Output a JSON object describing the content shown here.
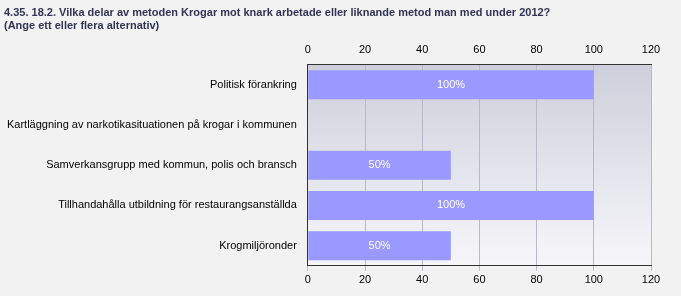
{
  "chart_data": {
    "type": "bar",
    "orientation": "horizontal",
    "title": [
      "4.35. 18.2. Vilka delar av metoden Krogar mot knark arbetade eller liknande metod man med under 2012?",
      "(Ange ett eller flera alternativ)"
    ],
    "categories": [
      "Politisk förankring",
      "Kartläggning av narkotikasituationen på krogar i kommunen",
      "Samverkansgrupp med kommun, polis och bransch",
      "Tillhandahålla utbildning för restaurangsanställda",
      "Krogmiljöronder"
    ],
    "values": [
      100,
      null,
      50,
      100,
      50
    ],
    "value_labels": [
      "100%",
      null,
      "50%",
      "100%",
      "50%"
    ],
    "data_labels": true,
    "color": "#9999ff",
    "xlim": [
      0,
      120
    ],
    "xticks": [
      0,
      20,
      40,
      60,
      80,
      100,
      120
    ],
    "grid": true
  }
}
